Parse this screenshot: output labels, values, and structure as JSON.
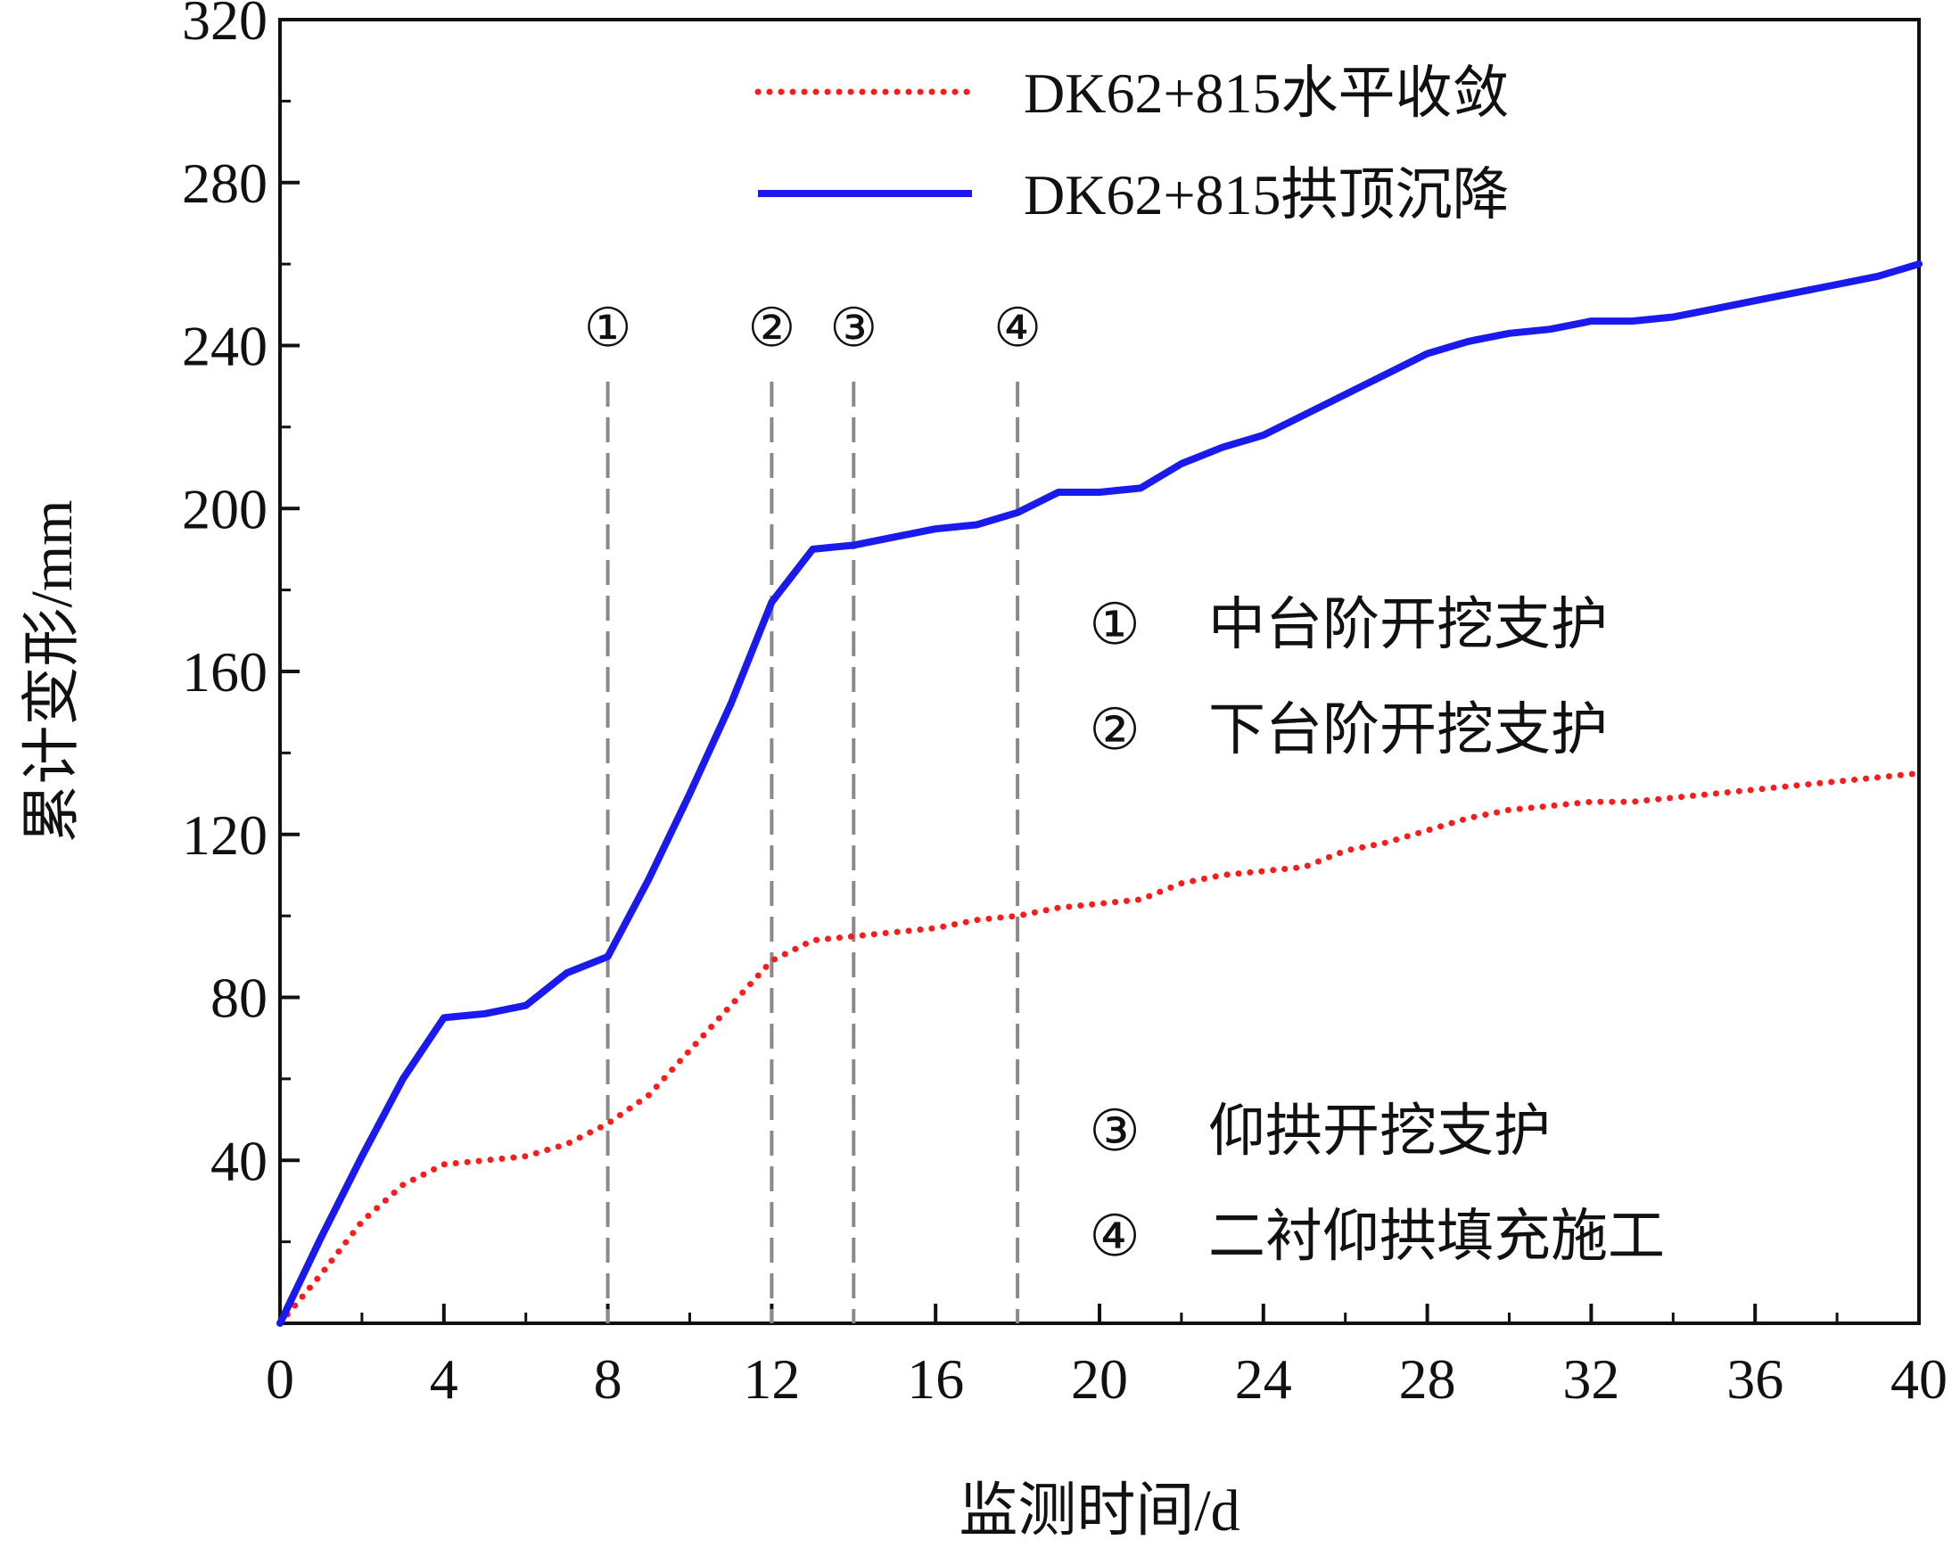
{
  "chart_data": {
    "type": "line",
    "xlabel": "监测时间/d",
    "ylabel": "累计变形/mm",
    "xlim": [
      0,
      40
    ],
    "ylim": [
      0,
      320
    ],
    "xticks": [
      0,
      4,
      8,
      12,
      16,
      20,
      24,
      28,
      32,
      36,
      40
    ],
    "yticks": [
      40,
      80,
      120,
      160,
      200,
      240,
      280,
      320
    ],
    "grid": false,
    "legend_position": "top-right",
    "series": [
      {
        "name": "DK62+815水平收敛",
        "color": "#ff1a1a",
        "style": "dotted",
        "x": [
          0,
          1,
          2,
          3,
          4,
          5,
          6,
          7,
          8,
          9,
          10,
          11,
          12,
          13,
          14,
          15,
          16,
          17,
          18,
          19,
          20,
          21,
          22,
          23,
          24,
          25,
          26,
          27,
          28,
          29,
          30,
          31,
          32,
          33,
          34,
          35,
          36,
          37,
          38,
          39,
          40
        ],
        "values": [
          0,
          12,
          25,
          34,
          39,
          40,
          41,
          44,
          49,
          56,
          67,
          78,
          89,
          94,
          95,
          96,
          97,
          99,
          100,
          102,
          103,
          104,
          108,
          110,
          111,
          112,
          116,
          118,
          121,
          124,
          126,
          127,
          128,
          128,
          129,
          130,
          131,
          132,
          133,
          134,
          135
        ]
      },
      {
        "name": "DK62+815拱顶沉降",
        "color": "#1a1aee",
        "style": "solid",
        "x": [
          0,
          1,
          2,
          3,
          4,
          5,
          6,
          7,
          8,
          9,
          10,
          11,
          12,
          13,
          14,
          15,
          16,
          17,
          18,
          19,
          20,
          21,
          22,
          23,
          24,
          25,
          26,
          27,
          28,
          29,
          30,
          31,
          32,
          33,
          34,
          35,
          36,
          37,
          38,
          39,
          40
        ],
        "values": [
          0,
          21,
          41,
          60,
          75,
          76,
          78,
          86,
          90,
          109,
          130,
          152,
          177,
          190,
          191,
          193,
          195,
          196,
          199,
          204,
          204,
          205,
          211,
          215,
          218,
          223,
          228,
          233,
          238,
          241,
          243,
          244,
          246,
          246,
          247,
          249,
          251,
          253,
          255,
          257,
          260
        ]
      }
    ],
    "vertical_markers": [
      {
        "x": 8,
        "label": "①"
      },
      {
        "x": 12,
        "label": "②"
      },
      {
        "x": 14,
        "label": "③"
      },
      {
        "x": 18,
        "label": "④"
      }
    ],
    "annotations": [
      {
        "symbol": "①",
        "text": "中台阶开挖支护"
      },
      {
        "symbol": "②",
        "text": "下台阶开挖支护"
      },
      {
        "symbol": "③",
        "text": "仰拱开挖支护"
      },
      {
        "symbol": "④",
        "text": "二衬仰拱填充施工"
      }
    ]
  }
}
